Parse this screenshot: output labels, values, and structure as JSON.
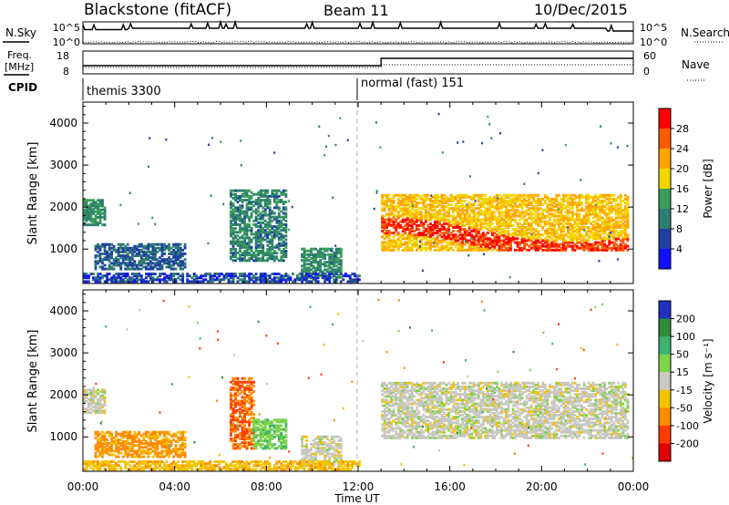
{
  "header": {
    "radar": "Blackstone (fitACF)",
    "beam": "Beam 11",
    "date": "10/Dec/2015"
  },
  "status_panels": {
    "nsky_label": "N.Sky",
    "nsky_ticks": [
      "10^5",
      "10^0"
    ],
    "nsearch_label": "N.Search",
    "nsearch_ticks": [
      "10^5",
      "10^0"
    ],
    "freq_label_line1": "Freq.",
    "freq_label_line2": "[MHz]",
    "freq_ticks": [
      "18",
      "8"
    ],
    "nave_label": "Nave",
    "nave_ticks": [
      "60",
      "0"
    ],
    "cpid_label": "CPID",
    "cpid_segments": [
      {
        "name": "themis 3300",
        "start_hour": 0
      },
      {
        "name": "normal (fast) 151",
        "start_hour": 12
      }
    ]
  },
  "axes": {
    "ylabel": "Slant Range [km]",
    "yticks": [
      "1000",
      "2000",
      "3000",
      "4000"
    ],
    "xticks": [
      "00:00",
      "04:00",
      "08:00",
      "12:00",
      "16:00",
      "20:00",
      "00:00"
    ],
    "xlabel": "Time UT"
  },
  "power_colorbar": {
    "label": "Power [dB]",
    "ticks": [
      "28",
      "24",
      "20",
      "16",
      "12",
      "8",
      "4"
    ],
    "colors": [
      "#ff0000",
      "#ff5a00",
      "#ffa500",
      "#f2d600",
      "#3a9c5a",
      "#2e7d70",
      "#1f3fa6",
      "#1010ff"
    ]
  },
  "velocity_colorbar": {
    "label": "Velocity [m s⁻¹]",
    "ticks": [
      "200",
      "100",
      "50",
      "15",
      "-15",
      "-50",
      "-100",
      "-200"
    ],
    "colors": [
      "#2030c0",
      "#2e8c3a",
      "#3cb371",
      "#7ed34a",
      "#c8c8c0",
      "#f2c300",
      "#ff8c00",
      "#ff3c00",
      "#e00000"
    ]
  },
  "chart_data": [
    {
      "type": "heatmap",
      "title": "Power",
      "x_range_hours": [
        0,
        24
      ],
      "y_range_km": [
        180,
        4500
      ],
      "cbar_range_db": [
        0,
        32
      ],
      "echo_regions": [
        {
          "t": [
            0.0,
            0.9
          ],
          "range_km": [
            1550,
            2150
          ],
          "value": 12
        },
        {
          "t": [
            0.5,
            4.5
          ],
          "range_km": [
            500,
            1100
          ],
          "value": 8
        },
        {
          "t": [
            6.4,
            8.8
          ],
          "range_km": [
            700,
            2400
          ],
          "value": 11
        },
        {
          "t": [
            9.5,
            11.2
          ],
          "range_km": [
            300,
            1000
          ],
          "value": 12
        },
        {
          "t": [
            13.0,
            23.8
          ],
          "range_km": [
            950,
            2300
          ],
          "value": 20
        },
        {
          "t": [
            0.0,
            12.0
          ],
          "range_km": [
            200,
            400
          ],
          "value": 6
        }
      ],
      "gap_hour": 12,
      "peak_db": 30
    },
    {
      "type": "heatmap",
      "title": "Velocity",
      "x_range_hours": [
        0,
        24
      ],
      "y_range_km": [
        180,
        4500
      ],
      "cbar_range_ms": [
        -250,
        250
      ],
      "echo_regions": [
        {
          "t": [
            0.0,
            0.9
          ],
          "range_km": [
            1550,
            2100
          ],
          "value": 0
        },
        {
          "t": [
            0.5,
            4.5
          ],
          "range_km": [
            500,
            1100
          ],
          "value": -60
        },
        {
          "t": [
            6.4,
            7.4
          ],
          "range_km": [
            700,
            2400
          ],
          "value": -100
        },
        {
          "t": [
            7.4,
            8.8
          ],
          "range_km": [
            700,
            1400
          ],
          "value": 40
        },
        {
          "t": [
            9.5,
            11.2
          ],
          "range_km": [
            300,
            1000
          ],
          "value": 0
        },
        {
          "t": [
            13.0,
            23.8
          ],
          "range_km": [
            950,
            2300
          ],
          "value": 0
        },
        {
          "t": [
            0.0,
            12.0
          ],
          "range_km": [
            200,
            400
          ],
          "value": -40
        }
      ]
    }
  ]
}
